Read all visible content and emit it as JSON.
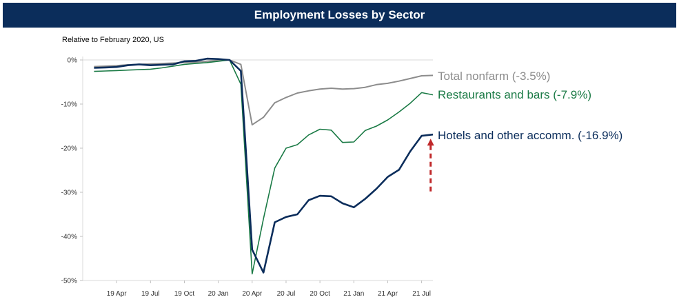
{
  "header": {
    "title": "Employment Losses by Sector"
  },
  "chart_data": {
    "type": "line",
    "title": "Employment Losses by Sector",
    "subtitle": "Relative to February 2020, US",
    "xlabel": "",
    "ylabel": "",
    "ylim": [
      -50,
      0
    ],
    "x_month_index_range": [
      -1,
      30
    ],
    "y_ticks": [
      {
        "value": 0,
        "label": "0%"
      },
      {
        "value": -10,
        "label": "-10%"
      },
      {
        "value": -20,
        "label": "-20%"
      },
      {
        "value": -30,
        "label": "-30%"
      },
      {
        "value": -40,
        "label": "-40%"
      },
      {
        "value": -50,
        "label": "-50%"
      }
    ],
    "x_ticks": [
      {
        "value": 2,
        "label": "19 Apr"
      },
      {
        "value": 5,
        "label": "19 Jul"
      },
      {
        "value": 8,
        "label": "19 Oct"
      },
      {
        "value": 11,
        "label": "20 Jan"
      },
      {
        "value": 14,
        "label": "20 Apr"
      },
      {
        "value": 17,
        "label": "20 Jul"
      },
      {
        "value": 20,
        "label": "20 Oct"
      },
      {
        "value": 23,
        "label": "21 Jan"
      },
      {
        "value": 26,
        "label": "21 Apr"
      },
      {
        "value": 29,
        "label": "21 Jul"
      }
    ],
    "series": [
      {
        "name": "Total nonfarm",
        "label": "Total nonfarm (-3.5%)",
        "color": "#8c8c8c",
        "x": [
          0,
          1,
          2,
          3,
          4,
          5,
          6,
          7,
          8,
          9,
          10,
          11,
          12,
          13,
          14,
          15,
          16,
          17,
          18,
          19,
          20,
          21,
          22,
          23,
          24,
          25,
          26,
          27,
          28,
          29,
          30
        ],
        "values": [
          -1.5,
          -1.4,
          -1.3,
          -1.1,
          -1.0,
          -0.9,
          -0.8,
          -0.7,
          -0.6,
          -0.5,
          -0.3,
          -0.1,
          0.0,
          -1.0,
          -14.7,
          -13.0,
          -9.7,
          -8.5,
          -7.5,
          -7.0,
          -6.6,
          -6.4,
          -6.6,
          -6.5,
          -6.2,
          -5.6,
          -5.3,
          -4.8,
          -4.2,
          -3.6,
          -3.5
        ]
      },
      {
        "name": "Restaurants and bars",
        "label": "Restaurants and bars (-7.9%)",
        "color": "#1a7a45",
        "x": [
          0,
          1,
          2,
          3,
          4,
          5,
          6,
          7,
          8,
          9,
          10,
          11,
          12,
          13,
          14,
          15,
          16,
          17,
          18,
          19,
          20,
          21,
          22,
          23,
          24,
          25,
          26,
          27,
          28,
          29,
          30
        ],
        "values": [
          -2.6,
          -2.5,
          -2.4,
          -2.3,
          -2.2,
          -2.1,
          -1.8,
          -1.4,
          -1.0,
          -0.8,
          -0.6,
          -0.3,
          0.0,
          -5.5,
          -48.5,
          -36.0,
          -24.5,
          -20.0,
          -19.2,
          -17.0,
          -15.7,
          -15.9,
          -18.7,
          -18.6,
          -16.0,
          -15.0,
          -13.6,
          -11.8,
          -9.8,
          -7.4,
          -7.9
        ]
      },
      {
        "name": "Hotels and other accomm.",
        "label": "Hotels and other accomm. (-16.9%)",
        "color": "#0b2d5b",
        "x": [
          0,
          1,
          2,
          3,
          4,
          5,
          6,
          7,
          8,
          9,
          10,
          11,
          12,
          13,
          14,
          15,
          16,
          17,
          18,
          19,
          20,
          21,
          22,
          23,
          24,
          25,
          26,
          27,
          28,
          29,
          30
        ],
        "values": [
          -1.8,
          -1.7,
          -1.6,
          -1.2,
          -1.0,
          -1.2,
          -1.1,
          -1.0,
          -0.3,
          -0.2,
          0.3,
          0.2,
          0.0,
          -2.5,
          -43.0,
          -48.2,
          -36.8,
          -35.6,
          -35.0,
          -31.8,
          -30.8,
          -30.9,
          -32.5,
          -33.4,
          -31.5,
          -29.2,
          -26.5,
          -24.9,
          -20.7,
          -17.2,
          -16.9
        ]
      }
    ],
    "annotations": [
      {
        "type": "arrow",
        "style": "dashed",
        "direction": "up",
        "color": "#c0282a",
        "x": 29.8,
        "from": -29.8,
        "to": -18.0
      }
    ]
  }
}
